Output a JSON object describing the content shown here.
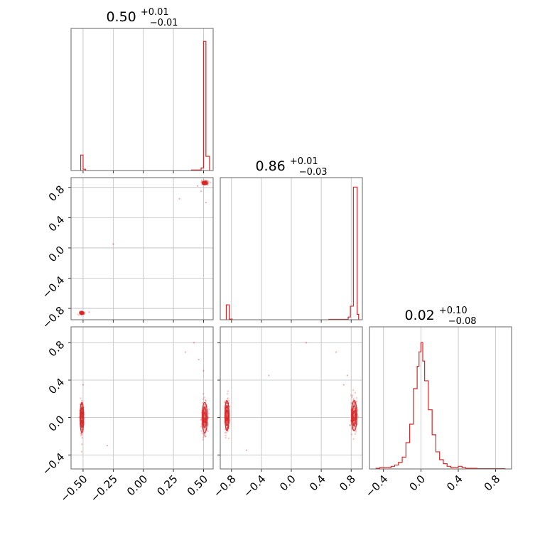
{
  "chart_data": {
    "type": "corner",
    "color": "#d62728",
    "grid": true,
    "titles": [
      {
        "panel": "x1",
        "value": "0.50",
        "plus": "+0.01",
        "minus": "−0.01"
      },
      {
        "panel": "x2",
        "value": "0.86",
        "plus": "+0.01",
        "minus": "−0.03"
      },
      {
        "panel": "x3",
        "value": "0.02",
        "plus": "+0.10",
        "minus": "−0.08"
      }
    ],
    "axes": {
      "x1": {
        "range": [
          -0.6,
          0.58
        ],
        "ticks": [
          -0.5,
          -0.25,
          0.0,
          0.25,
          0.5
        ],
        "tick_labels": [
          "−0.50",
          "−0.25",
          "0.00",
          "0.25",
          "0.50"
        ]
      },
      "x2": {
        "range": [
          -0.95,
          0.95
        ],
        "ticks": [
          -0.8,
          -0.4,
          0.0,
          0.4,
          0.8
        ],
        "tick_labels": [
          "−0.8",
          "−0.4",
          "0.0",
          "0.4",
          "0.8"
        ]
      },
      "x3": {
        "range": [
          -0.55,
          0.97
        ],
        "ticks": [
          -0.4,
          0.0,
          0.4,
          0.8
        ],
        "tick_labels": [
          "−0.4",
          "0.0",
          "0.4",
          "0.8"
        ]
      }
    },
    "histograms": {
      "x1": {
        "bins": [
          [
            -0.52,
            -0.5,
            0.12
          ],
          [
            -0.5,
            -0.48,
            0.01
          ],
          [
            0.4,
            0.48,
            0.004
          ],
          [
            0.48,
            0.5,
            0.02
          ],
          [
            0.5,
            0.52,
            1.0
          ],
          [
            0.52,
            0.55,
            0.11
          ]
        ],
        "ylim": [
          0,
          1.1
        ]
      },
      "x2": {
        "bins": [
          [
            -0.87,
            -0.83,
            0.11
          ],
          [
            -0.83,
            -0.79,
            0.005
          ],
          [
            0.5,
            0.76,
            0.003
          ],
          [
            0.76,
            0.79,
            0.02
          ],
          [
            0.79,
            0.83,
            0.1
          ],
          [
            0.83,
            0.88,
            0.98
          ],
          [
            0.88,
            0.9,
            0.04
          ]
        ],
        "ylim": [
          0,
          1.05
        ]
      },
      "x3": {
        "bins": [
          [
            -0.48,
            -0.44,
            0.005
          ],
          [
            -0.44,
            -0.4,
            0.01
          ],
          [
            -0.4,
            -0.36,
            0.01
          ],
          [
            -0.36,
            -0.32,
            0.01
          ],
          [
            -0.32,
            -0.28,
            0.02
          ],
          [
            -0.28,
            -0.24,
            0.03
          ],
          [
            -0.24,
            -0.2,
            0.05
          ],
          [
            -0.2,
            -0.16,
            0.09
          ],
          [
            -0.16,
            -0.12,
            0.2
          ],
          [
            -0.12,
            -0.08,
            0.34
          ],
          [
            -0.08,
            -0.04,
            0.61
          ],
          [
            -0.04,
            -0.02,
            0.78
          ],
          [
            -0.02,
            0.0,
            0.89
          ],
          [
            0.0,
            0.02,
            0.96
          ],
          [
            0.02,
            0.04,
            0.82
          ],
          [
            0.04,
            0.08,
            0.67
          ],
          [
            0.08,
            0.12,
            0.45
          ],
          [
            0.12,
            0.16,
            0.26
          ],
          [
            0.16,
            0.2,
            0.13
          ],
          [
            0.2,
            0.24,
            0.07
          ],
          [
            0.24,
            0.28,
            0.04
          ],
          [
            0.28,
            0.32,
            0.02
          ],
          [
            0.32,
            0.36,
            0.01
          ],
          [
            0.36,
            0.4,
            0.01
          ],
          [
            0.4,
            0.44,
            0.02
          ],
          [
            0.44,
            0.48,
            0.01
          ],
          [
            0.48,
            0.6,
            0.005
          ],
          [
            0.6,
            0.9,
            0.002
          ]
        ],
        "ylim": [
          0,
          1.08
        ]
      }
    },
    "scatter": {
      "x1_x2": {
        "clusters": [
          {
            "center": [
              0.51,
              0.86
            ],
            "spread": [
              0.012,
              0.012
            ]
          },
          {
            "center": [
              -0.51,
              -0.86
            ],
            "spread": [
              0.008,
              0.008
            ]
          }
        ],
        "outliers": [
          [
            0.45,
            0.82
          ],
          [
            0.48,
            0.75
          ],
          [
            0.3,
            0.65
          ],
          [
            -0.25,
            0.05
          ],
          [
            -0.45,
            -0.85
          ],
          [
            0.52,
            0.6
          ]
        ]
      },
      "x1_x3": {
        "clusters": [
          {
            "center": [
              -0.51,
              0.0
            ],
            "spread": [
              0.008,
              0.09
            ]
          },
          {
            "center": [
              0.51,
              0.0
            ],
            "spread": [
              0.012,
              0.09
            ]
          }
        ],
        "outliers": [
          [
            0.42,
            0.8
          ],
          [
            0.35,
            0.7
          ],
          [
            -0.5,
            0.35
          ],
          [
            -0.3,
            -0.3
          ],
          [
            0.5,
            0.5
          ],
          [
            0.46,
            0.62
          ]
        ]
      },
      "x2_x3": {
        "clusters": [
          {
            "center": [
              -0.86,
              0.02
            ],
            "spread": [
              0.015,
              0.09
            ]
          },
          {
            "center": [
              0.84,
              0.02
            ],
            "spread": [
              0.02,
              0.09
            ]
          }
        ],
        "outliers": [
          [
            0.7,
            0.35
          ],
          [
            0.6,
            0.7
          ],
          [
            0.2,
            0.8
          ],
          [
            -0.3,
            0.45
          ],
          [
            -0.6,
            -0.35
          ],
          [
            0.75,
            0.45
          ]
        ]
      }
    },
    "scatter_ylims": {
      "x2": [
        -0.95,
        0.93
      ],
      "x3": [
        -0.55,
        0.97
      ]
    }
  }
}
